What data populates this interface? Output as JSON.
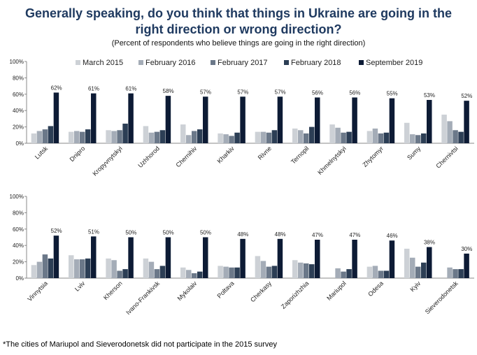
{
  "title_line1": "Generally speaking, do you think that things in Ukraine are going in the",
  "title_line2": "right direction or wrong direction?",
  "subtitle": "(Percent of respondents who believe things are going in the right direction)",
  "footnote": "*The cities of Mariupol and Sieverodonetsk did not participate in the 2015 survey",
  "colors": [
    "#cdd1d6",
    "#a4acb7",
    "#6b7889",
    "#2c3e55",
    "#0d1b35"
  ],
  "chart_data": [
    {
      "type": "bar",
      "categories": [
        "Lutsk",
        "Dnipro",
        "Kropyvnytskyi",
        "Uzhhorod",
        "Chernihiv",
        "Kharkiv",
        "Rivne",
        "Ternopil",
        "Khmelnytskyi",
        "Zhytomyr",
        "Sumy",
        "Chernivtsi"
      ],
      "series": [
        {
          "name": "March 2015",
          "values": [
            12,
            14,
            16,
            21,
            23,
            12,
            14,
            18,
            23,
            15,
            25,
            35
          ]
        },
        {
          "name": "February 2016",
          "values": [
            15,
            15,
            15,
            13,
            10,
            11,
            14,
            16,
            19,
            18,
            11,
            27
          ]
        },
        {
          "name": "February 2017",
          "values": [
            17,
            14,
            16,
            14,
            15,
            9,
            13,
            12,
            13,
            12,
            10,
            16
          ]
        },
        {
          "name": "February 2018",
          "values": [
            21,
            17,
            24,
            16,
            17,
            13,
            16,
            20,
            14,
            13,
            12,
            14
          ]
        },
        {
          "name": "September 2019",
          "values": [
            62,
            61,
            61,
            58,
            57,
            57,
            57,
            56,
            56,
            55,
            53,
            52
          ]
        }
      ],
      "data_labels": [
        "62%",
        "61%",
        "61%",
        "58%",
        "57%",
        "57%",
        "57%",
        "56%",
        "56%",
        "55%",
        "53%",
        "52%"
      ],
      "y_ticks": [
        "0%",
        "20%",
        "40%",
        "60%",
        "80%",
        "100%"
      ],
      "ylim": [
        0,
        100
      ],
      "legend": "top"
    },
    {
      "type": "bar",
      "categories": [
        "Vinnytsia",
        "Lviv",
        "Kherson",
        "Ivano-Frankivsk",
        "Mykolaiv",
        "Poltava",
        "Cherkasy",
        "Zaporizhzhia",
        "Mariupol",
        "Odesa",
        "Kyiv",
        "Sieverodonetsk"
      ],
      "series": [
        {
          "name": "March 2015",
          "values": [
            16,
            28,
            24,
            24,
            13,
            15,
            27,
            22,
            null,
            14,
            36,
            null
          ]
        },
        {
          "name": "February 2016",
          "values": [
            20,
            23,
            22,
            20,
            10,
            14,
            21,
            19,
            12,
            15,
            25,
            13
          ]
        },
        {
          "name": "February 2017",
          "values": [
            29,
            23,
            9,
            11,
            6,
            13,
            14,
            18,
            8,
            9,
            14,
            11
          ]
        },
        {
          "name": "February 2018",
          "values": [
            24,
            24,
            11,
            15,
            8,
            13,
            15,
            17,
            11,
            9,
            19,
            11
          ]
        },
        {
          "name": "September 2019",
          "values": [
            52,
            51,
            50,
            50,
            50,
            48,
            48,
            47,
            47,
            46,
            38,
            30
          ]
        }
      ],
      "data_labels": [
        "52%",
        "51%",
        "50%",
        "50%",
        "50%",
        "48%",
        "48%",
        "47%",
        "47%",
        "46%",
        "38%",
        "30%"
      ],
      "y_ticks": [
        "0%",
        "20%",
        "40%",
        "60%",
        "80%",
        "100%"
      ],
      "ylim": [
        0,
        100
      ]
    }
  ]
}
